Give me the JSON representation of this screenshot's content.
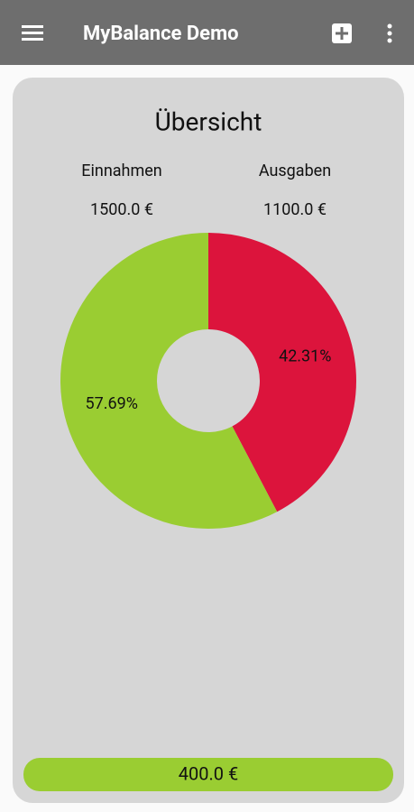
{
  "header": {
    "title": "MyBalance Demo"
  },
  "overview": {
    "title": "Übersicht",
    "income": {
      "label": "Einnahmen",
      "amount": "1500.0 €"
    },
    "expenses": {
      "label": "Ausgaben",
      "amount": "1100.0 €"
    },
    "balance": "400.0 €"
  },
  "chart_data": {
    "type": "pie",
    "donut": true,
    "values": [
      42.31,
      57.69
    ],
    "value_labels": [
      "42.31%",
      "57.69%"
    ],
    "colors": [
      "#dc143c",
      "#9acd32"
    ]
  }
}
